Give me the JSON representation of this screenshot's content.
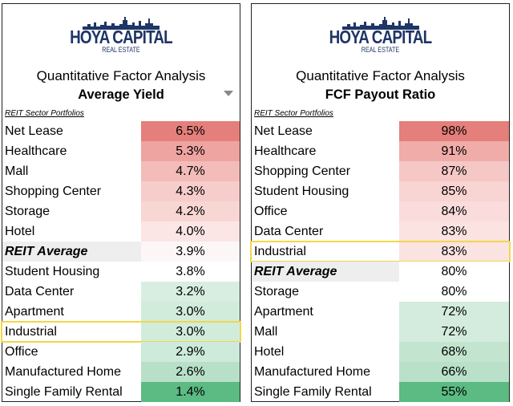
{
  "chart_data": [
    {
      "type": "table",
      "brand": "HOYA CAPITAL",
      "brand_sub": "REAL ESTATE",
      "title": "Quantitative Factor Analysis",
      "metric": "Average Yield",
      "section_label": "REIT Sector Portfolios",
      "rows": [
        {
          "name": "Net Lease",
          "value": 6.5,
          "label": "6.5%",
          "color": "#e47f7b"
        },
        {
          "name": "Healthcare",
          "value": 5.3,
          "label": "5.3%",
          "color": "#eea4a0"
        },
        {
          "name": "Mall",
          "value": 4.7,
          "label": "4.7%",
          "color": "#f3bcb9"
        },
        {
          "name": "Shopping Center",
          "value": 4.3,
          "label": "4.3%",
          "color": "#f7cdcb"
        },
        {
          "name": "Storage",
          "value": 4.2,
          "label": "4.2%",
          "color": "#f8d6d4"
        },
        {
          "name": "Hotel",
          "value": 4.0,
          "label": "4.0%",
          "color": "#fbe6e5"
        },
        {
          "name": "REIT Average",
          "value": 3.9,
          "label": "3.9%",
          "color": "#fdf6f6",
          "is_average": true
        },
        {
          "name": "Student Housing",
          "value": 3.8,
          "label": "3.8%",
          "color": "#ffffff"
        },
        {
          "name": "Data Center",
          "value": 3.2,
          "label": "3.2%",
          "color": "#d8eee1"
        },
        {
          "name": "Apartment",
          "value": 3.0,
          "label": "3.0%",
          "color": "#d2ecdc"
        },
        {
          "name": "Industrial",
          "value": 3.0,
          "label": "3.0%",
          "color": "#d2ecdc",
          "highlight": true
        },
        {
          "name": "Office",
          "value": 2.9,
          "label": "2.9%",
          "color": "#cdeada"
        },
        {
          "name": "Manufactured Home",
          "value": 2.6,
          "label": "2.6%",
          "color": "#b8e0c8"
        },
        {
          "name": "Single Family Rental",
          "value": 1.4,
          "label": "1.4%",
          "color": "#5bbb83"
        }
      ]
    },
    {
      "type": "table",
      "brand": "HOYA CAPITAL",
      "brand_sub": "REAL ESTATE",
      "title": "Quantitative Factor Analysis",
      "metric": "FCF Payout Ratio",
      "section_label": "REIT Sector Portfolios",
      "rows": [
        {
          "name": "Net Lease",
          "value": 98,
          "label": "98%",
          "color": "#e47f7b"
        },
        {
          "name": "Healthcare",
          "value": 91,
          "label": "91%",
          "color": "#efaca8"
        },
        {
          "name": "Shopping Center",
          "value": 87,
          "label": "87%",
          "color": "#f5c8c6"
        },
        {
          "name": "Student Housing",
          "value": 85,
          "label": "85%",
          "color": "#f8d4d2"
        },
        {
          "name": "Office",
          "value": 84,
          "label": "84%",
          "color": "#f9dcdb"
        },
        {
          "name": "Data Center",
          "value": 83,
          "label": "83%",
          "color": "#fbe3e2"
        },
        {
          "name": "Industrial",
          "value": 83,
          "label": "83%",
          "color": "#fbe3e2",
          "highlight": true
        },
        {
          "name": "REIT Average",
          "value": 80,
          "label": "80%",
          "color": "#ffffff",
          "is_average": true
        },
        {
          "name": "Storage",
          "value": 80,
          "label": "80%",
          "color": "#ffffff"
        },
        {
          "name": "Apartment",
          "value": 72,
          "label": "72%",
          "color": "#d3ecdd"
        },
        {
          "name": "Mall",
          "value": 72,
          "label": "72%",
          "color": "#d3ecdd"
        },
        {
          "name": "Hotel",
          "value": 68,
          "label": "68%",
          "color": "#c3e5d0"
        },
        {
          "name": "Manufactured Home",
          "value": 66,
          "label": "66%",
          "color": "#b9e1c9"
        },
        {
          "name": "Single Family Rental",
          "value": 55,
          "label": "55%",
          "color": "#5bbb83"
        }
      ]
    }
  ],
  "colors": {
    "brand": "#1f3566",
    "highlight_border": "#f2d64a",
    "average_row_bg": "#eeeeee"
  },
  "icons": {
    "dropdown": "dropdown-arrow-icon",
    "logo": "skyline-logo-icon"
  }
}
